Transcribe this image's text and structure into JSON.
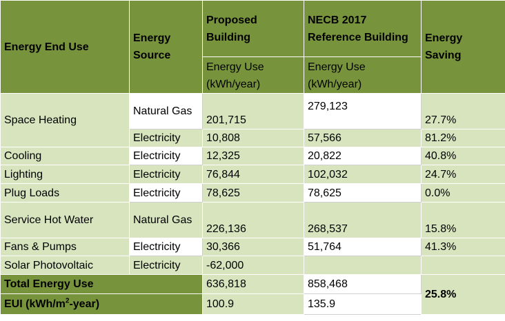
{
  "headers": {
    "end_use": "Energy End Use",
    "source": "Energy Source",
    "proposed": "Proposed Building",
    "reference": "NECB 2017 Reference Building",
    "saving": "Energy Saving",
    "proposed_units": "Energy Use (kWh/year)",
    "reference_units": "Energy Use (kWh/year)"
  },
  "space_heating": {
    "label": "Space Heating",
    "gas_source": "Natural Gas",
    "gas_proposed": "201,715",
    "gas_reference": "279,123",
    "gas_saving": "27.7%",
    "elec_source": "Electricity",
    "elec_proposed": "10,808",
    "elec_reference": "57,566",
    "elec_saving": "81.2%"
  },
  "cooling": {
    "label": "Cooling",
    "source": "Electricity",
    "proposed": "12,325",
    "reference": "20,822",
    "saving": "40.8%"
  },
  "lighting": {
    "label": "Lighting",
    "source": "Electricity",
    "proposed": "76,844",
    "reference": "102,032",
    "saving": "24.7%"
  },
  "plug_loads": {
    "label": "Plug Loads",
    "source": "Electricity",
    "proposed": "78,625",
    "reference": "78,625",
    "saving": "0.0%"
  },
  "hot_water": {
    "label": "Service Hot Water",
    "source": "Natural Gas",
    "proposed": "226,136",
    "reference": "268,537",
    "saving": "15.8%"
  },
  "fans": {
    "label": "Fans & Pumps",
    "source": "Electricity",
    "proposed": "30,366",
    "reference": "51,764",
    "saving": "41.3%"
  },
  "solar": {
    "label": "Solar Photovoltaic",
    "source": "Electricity",
    "proposed": "-62,000",
    "reference": "",
    "saving": ""
  },
  "total": {
    "label": "Total Energy Use",
    "proposed": "636,818",
    "reference": "858,468",
    "saving": "25.8%"
  },
  "eui": {
    "label_prefix": "EUI (kWh/m",
    "label_sup": "2",
    "label_suffix": "-year)",
    "proposed": "100.9",
    "reference": "135.9"
  }
}
